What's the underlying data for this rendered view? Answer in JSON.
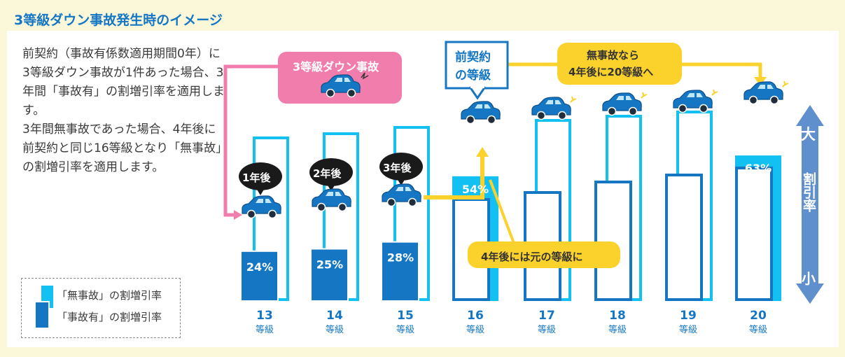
{
  "title": "3等級ダウン事故発生時のイメージ",
  "description": [
    "前契約（事故有係数適用期間0年）に3等級ダウン事故が1件あった場合、3年間「事故有」の割増引率を適用します。",
    "3年間無事故であった場合、4年後に前契約と同じ16等級となり「無事故」の割増引率を適用します。"
  ],
  "legend": {
    "no_accident": "「無事故」の割増引率",
    "accident": "「事故有」の割増引率"
  },
  "callouts": {
    "accident_event": "3等級ダウン事故",
    "previous_contract_line1": "前契約",
    "previous_contract_line2": "の等級",
    "no_accident_note_line1": "無事故なら",
    "no_accident_note_line2": "4年後に20等級へ",
    "return_note": "4年後には元の等級に",
    "year_badges": [
      "1年後",
      "2年後",
      "3年後"
    ]
  },
  "scale": {
    "top_label": "大",
    "middle_label": "割引率",
    "bottom_label": "小"
  },
  "colors": {
    "no_accident": "#12c0f2",
    "accident": "#1577c4",
    "accident_callout": "#f07dac",
    "highlight": "#fbd12b",
    "title": "#1577c4"
  },
  "chart_data": {
    "type": "bar",
    "categories": [
      "13",
      "14",
      "15",
      "16",
      "17",
      "18",
      "19",
      "20"
    ],
    "category_suffix": "等級",
    "series": [
      {
        "name": "「無事故」の割増引率",
        "values": [
          null,
          null,
          null,
          54,
          null,
          null,
          null,
          63
        ],
        "labels": [
          "",
          "",
          "",
          "54%",
          "",
          "",
          "",
          "63%"
        ]
      },
      {
        "name": "「事故有」の割増引率",
        "values": [
          24,
          25,
          28,
          null,
          null,
          null,
          null,
          null
        ],
        "labels": [
          "24%",
          "25%",
          "28%",
          "",
          "",
          "",
          "",
          ""
        ]
      }
    ]
  }
}
